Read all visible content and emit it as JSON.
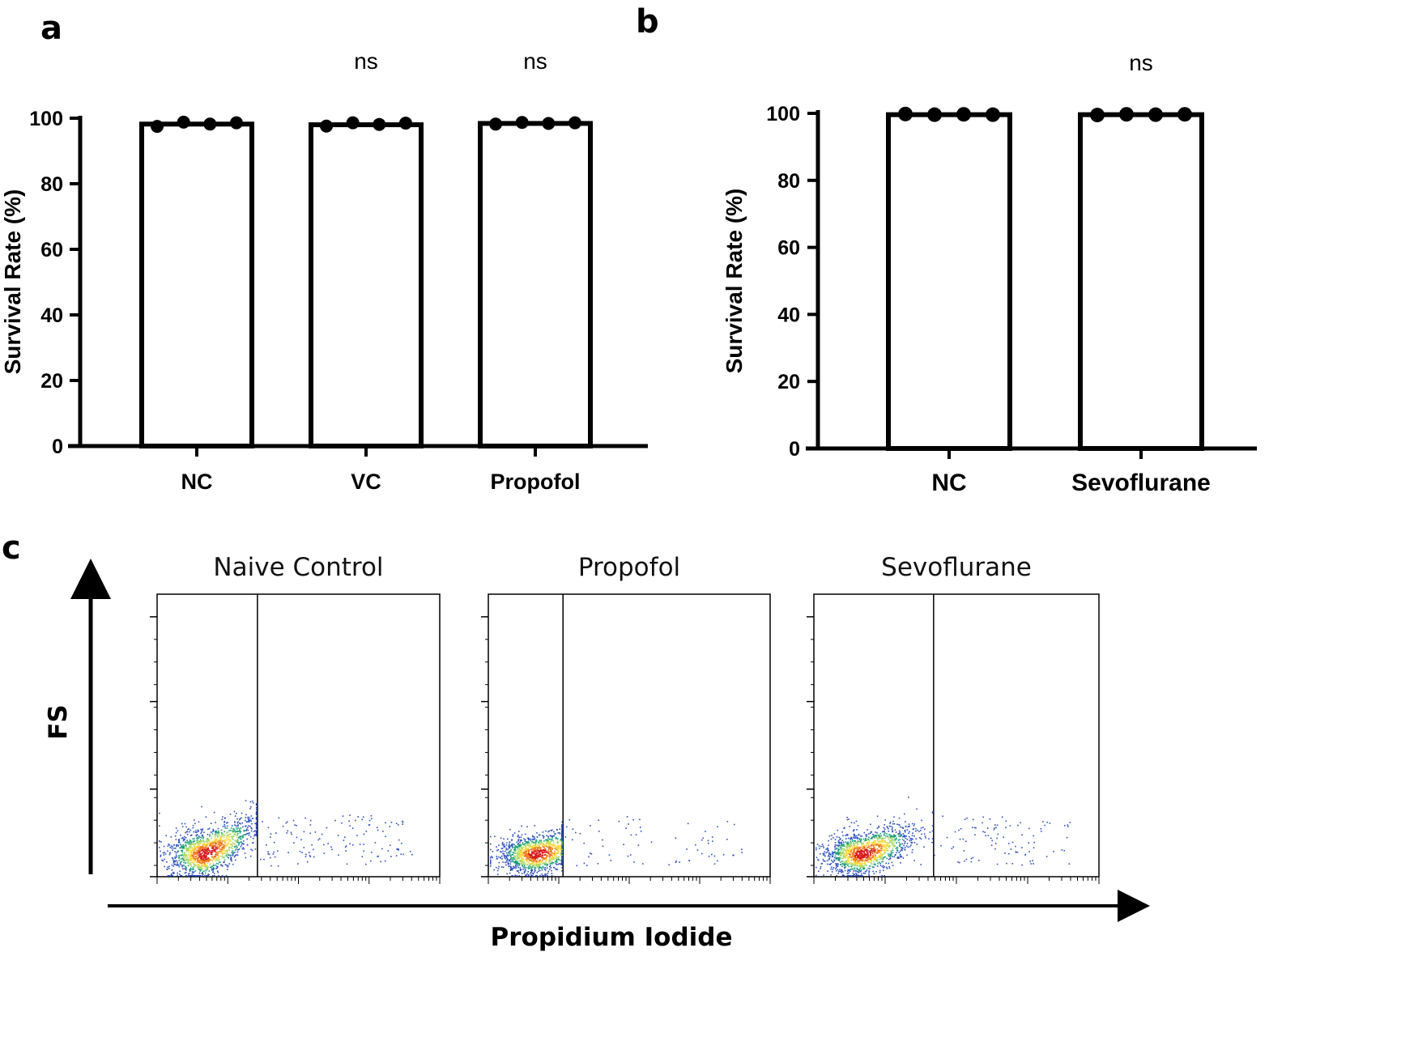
{
  "chart_data": [
    {
      "panel": "a",
      "type": "bar",
      "ylabel": "Survival Rate (%)",
      "ylim": [
        0,
        100
      ],
      "yticks": [
        0,
        20,
        40,
        60,
        80,
        100
      ],
      "categories": [
        "NC",
        "VC",
        "Propofol"
      ],
      "values": [
        98.2,
        98.0,
        98.4
      ],
      "points": [
        [
          97.5,
          98.8,
          98.2,
          98.6
        ],
        [
          97.6,
          98.6,
          98.1,
          98.5
        ],
        [
          98.2,
          98.7,
          98.4,
          98.6
        ]
      ],
      "significance": [
        "",
        "ns",
        "ns"
      ]
    },
    {
      "panel": "b",
      "type": "bar",
      "ylabel": "Survival Rate (%)",
      "ylim": [
        0,
        100
      ],
      "yticks": [
        0,
        20,
        40,
        60,
        80,
        100
      ],
      "categories": [
        "NC",
        "Sevoflurane"
      ],
      "values": [
        99.6,
        99.6
      ],
      "points": [
        [
          99.8,
          99.6,
          99.7,
          99.6
        ],
        [
          99.5,
          99.7,
          99.6,
          99.7
        ]
      ],
      "significance": [
        "",
        "ns"
      ]
    },
    {
      "panel": "c",
      "type": "scatter",
      "xlabel": "Propidium Iodide",
      "ylabel": "FS",
      "plots": [
        {
          "title": "Naive Control",
          "gate_fraction": 0.355,
          "spread": 1.0
        },
        {
          "title": "Propofol",
          "gate_fraction": 0.265,
          "spread": 0.55
        },
        {
          "title": "Sevoflurane",
          "gate_fraction": 0.42,
          "spread": 0.75
        }
      ]
    }
  ]
}
